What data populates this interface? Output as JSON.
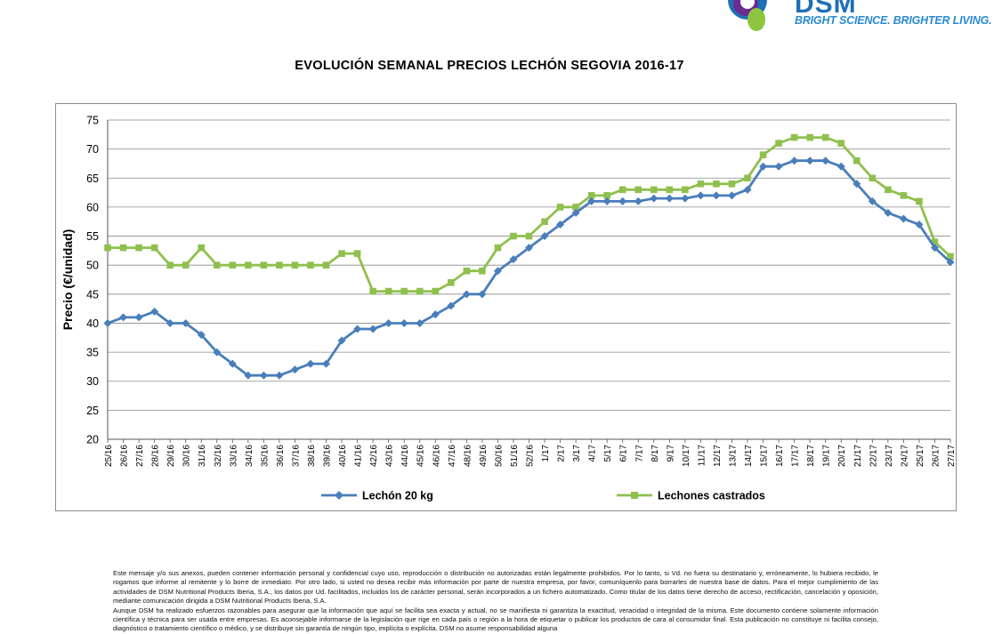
{
  "logo": {
    "name": "DSM",
    "tagline": "BRIGHT SCIENCE. BRIGHTER LIVING.",
    "colors": {
      "blue": "#1f6fb4",
      "green": "#8cc63f",
      "purple": "#6b2c91",
      "light_blue": "#2a8ad1"
    }
  },
  "chart_data": {
    "type": "line",
    "title": "EVOLUCIÓN SEMANAL PRECIOS LECHÓN SEGOVIA 2016-17",
    "xlabel": "",
    "ylabel": "Precio (€/unidad)",
    "ylim": [
      20,
      75
    ],
    "yticks": [
      20,
      25,
      30,
      35,
      40,
      45,
      50,
      55,
      60,
      65,
      70,
      75
    ],
    "grid": true,
    "legend_position": "bottom",
    "categories": [
      "25/16",
      "26/16",
      "27/16",
      "28/16",
      "29/16",
      "30/16",
      "31/16",
      "32/16",
      "33/16",
      "34/16",
      "35/16",
      "36/16",
      "37/16",
      "38/16",
      "39/16",
      "40/16",
      "41/16",
      "42/16",
      "43/16",
      "44/16",
      "45/16",
      "46/16",
      "47/16",
      "48/16",
      "49/16",
      "50/16",
      "51/16",
      "52/16",
      "1/17",
      "2/17",
      "3/17",
      "4/17",
      "5/17",
      "6/17",
      "7/17",
      "8/17",
      "9/17",
      "10/17",
      "11/17",
      "12/17",
      "13/17",
      "14/17",
      "15/17",
      "16/17",
      "17/17",
      "18/17",
      "19/17",
      "20/17",
      "21/17",
      "22/17",
      "23/17",
      "24/17",
      "25/17",
      "26/17",
      "27/17"
    ],
    "series": [
      {
        "name": "Lechón 20 kg",
        "color": "#4a7ebb",
        "marker": "diamond",
        "values": [
          40,
          41,
          41,
          42,
          40,
          40,
          38,
          35,
          33,
          31,
          31,
          31,
          32,
          33,
          33,
          37,
          39,
          39,
          40,
          40,
          40,
          41.5,
          43,
          45,
          45,
          49,
          51,
          53,
          55,
          57,
          59,
          61,
          61,
          61,
          61,
          61.5,
          61.5,
          61.5,
          62,
          62,
          62,
          63,
          67,
          67,
          68,
          68,
          68,
          67,
          64,
          61,
          59,
          58,
          57,
          53,
          50.5
        ]
      },
      {
        "name": "Lechones castrados",
        "color": "#8fc04e",
        "marker": "square",
        "values": [
          53,
          53,
          53,
          53,
          50,
          50,
          53,
          50,
          50,
          50,
          50,
          50,
          50,
          50,
          50,
          52,
          52,
          45.5,
          45.5,
          45.5,
          45.5,
          45.5,
          47,
          49,
          49,
          53,
          55,
          55,
          57.5,
          60,
          60,
          62,
          62,
          63,
          63,
          63,
          63,
          63,
          64,
          64,
          64,
          65,
          69,
          71,
          72,
          72,
          72,
          71,
          68,
          65,
          63,
          62,
          61,
          54,
          51.5
        ]
      }
    ]
  },
  "disclaimer": [
    "Este mensaje y/o sus anexos, pueden contener información personal y confidencial cuyo uso, reproducción o distribución no autorizadas están legalmente prohibidos. Por lo tanto, si Vd. no fuera su destinatario y, erróneamente, lo hubiera recibido, le rogamos que informe al remitente y lo borre de inmediato. Por otro lado, si usted no desea recibir más información por parte de nuestra empresa, por favor, comuníquenlo para borrarles de nuestra base de datos. Para el mejor cumplimiento de las actividades de DSM Nutritional Products Iberia, S.A., los datos por Ud. facilitados, incluidos los de carácter personal, serán incorporados a un fichero automatizado. Como titular de los datos tiene derecho de acceso, rectificación, cancelación y oposición, mediante comunicación dirigida a DSM Nutritional Products Iberia, S.A.",
    "Aunque DSM ha realizado esfuerzos razonables para asegurar que la información que aquí se facilita sea exacta y actual, no se manifiesta ni garantiza la exactitud, veracidad o integridad de la misma. Este documento contiene solamente información científica y técnica para ser usada entre empresas. Es aconsejable informarse de la legislación que rige en cada país o región a la hora de etiquetar o publicar los productos de cara al consumidor final. Esta publicación no constituye ni facilita consejo, diagnóstico o tratamiento científico o médico, y se distribuye sin garantía de ningún tipo, implícita o explícita. DSM no asume responsabilidad alguna"
  ]
}
